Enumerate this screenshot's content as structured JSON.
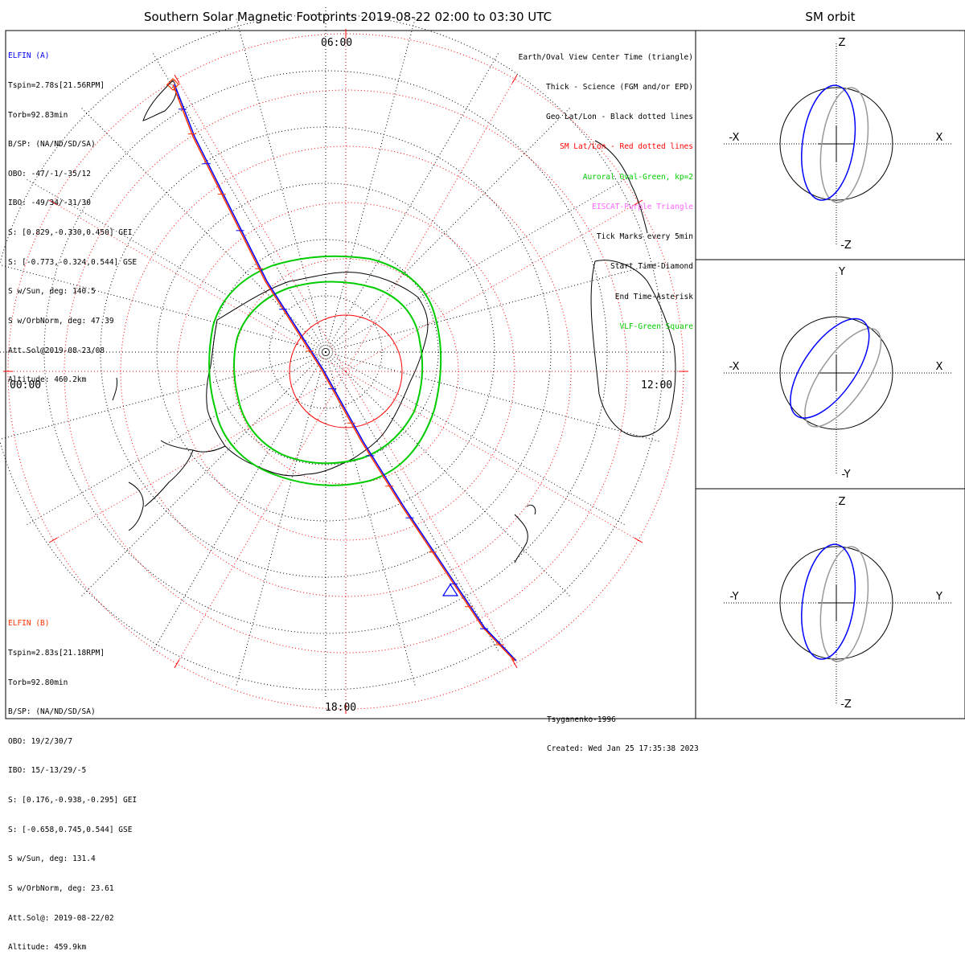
{
  "title": "Southern Solar Magnetic Footprints 2019-08-22 02:00 to 03:30 UTC",
  "side_title": "SM orbit",
  "colors": {
    "probe_a": "#0000ff",
    "probe_b": "#ff3300",
    "oval": "#00cc00",
    "sm_grid": "#ff0000",
    "geo": "#000000",
    "eiscat": "#ff66ff"
  },
  "map": {
    "mlt_labels": {
      "top": "06:00",
      "left": "00:00",
      "right": "12:00",
      "bottom": "18:00"
    }
  },
  "probe_a": {
    "name": "ELFIN (A)",
    "lines": [
      "Tspin=2.78s[21.56RPM]",
      "Torb=92.83min",
      "B/SP: (NA/ND/SD/SA)",
      "OBO: -47/-1/-35/12",
      "IBO: -49/34/-31/30",
      "S: [0.829,-0.330,0.450] GEI",
      "S: [-0.773,-0.324,0.544] GSE",
      "S w/Sun, deg: 140.5",
      "S w/OrbNorm, deg: 47.39",
      "Att.Sol@2019-08-23/08",
      "Altitude: 460.2km"
    ]
  },
  "probe_b": {
    "name": "ELFIN (B)",
    "lines": [
      "Tspin=2.83s[21.18RPM]",
      "Torb=92.80min",
      "B/SP: (NA/ND/SD/SA)",
      "OBO: 19/2/30/7",
      "IBO: 15/-13/29/-5",
      "S: [0.176,-0.938,-0.295] GEI",
      "S: [-0.658,0.745,0.544] GSE",
      "S w/Sun, deg: 131.4",
      "S w/OrbNorm, deg: 23.61",
      "Att.Sol@: 2019-08-22/02",
      "Altitude: 459.9km"
    ]
  },
  "legend": [
    {
      "text": "Earth/Oval View Center Time (triangle)",
      "color": "#000000"
    },
    {
      "text": "Thick - Science (FGM and/or EPD)",
      "color": "#000000"
    },
    {
      "text": "Geo Lat/Lon - Black dotted lines",
      "color": "#000000"
    },
    {
      "text": "SM Lat/Lon - Red dotted lines",
      "color": "#ff0000"
    },
    {
      "text": "Auroral Oval-Green, kp=2",
      "color": "#00cc00"
    },
    {
      "text": "EISCAT-Purple Triangle",
      "color": "#ff66ff"
    },
    {
      "text": "Tick Marks every 5min",
      "color": "#000000"
    },
    {
      "text": "Start Time-Diamond",
      "color": "#000000"
    },
    {
      "text": "End Time-Asterisk",
      "color": "#000000"
    },
    {
      "text": "VLF-Green Square",
      "color": "#00cc00"
    }
  ],
  "credits": {
    "model": "Tsyganenko-1996",
    "created": "Created: Wed Jan 25 17:35:38 2023"
  },
  "orbit_panels": [
    {
      "up": "Z",
      "down": "-Z",
      "left": "-X",
      "right": "X"
    },
    {
      "up": "Y",
      "down": "-Y",
      "left": "-X",
      "right": "X"
    },
    {
      "up": "Z",
      "down": "-Z",
      "left": "-Y",
      "right": "Y"
    }
  ]
}
